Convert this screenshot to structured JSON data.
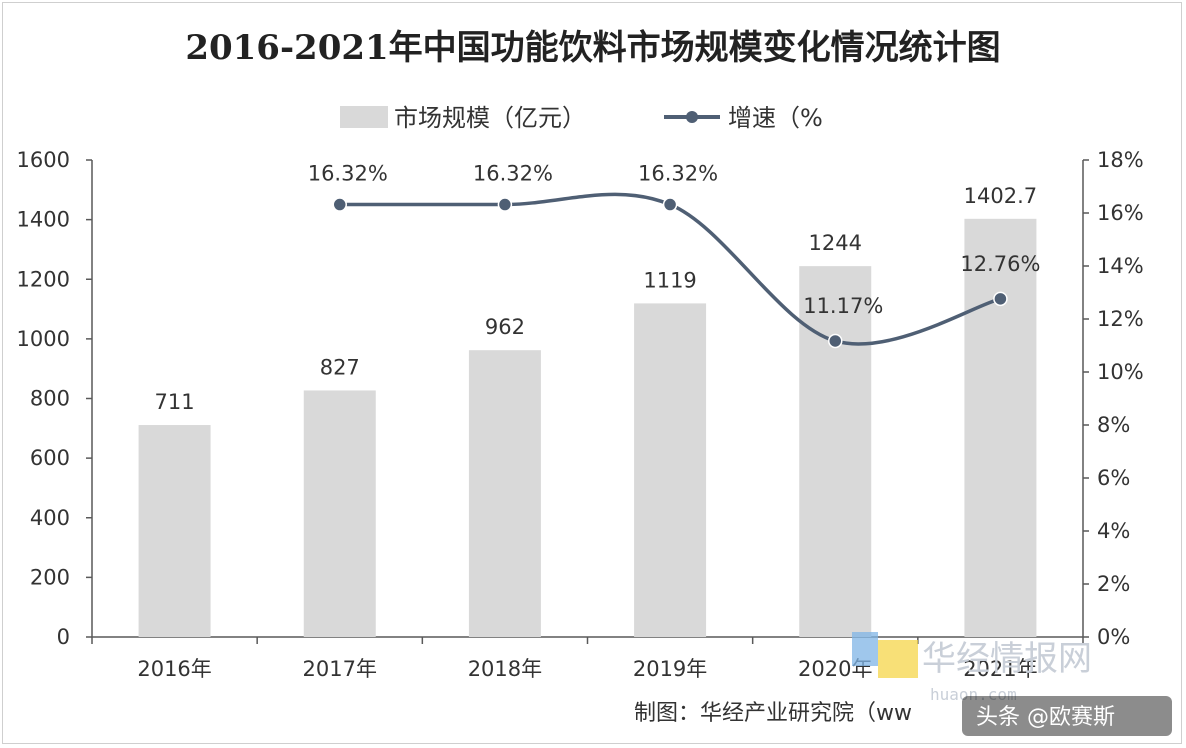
{
  "title": "2016-2021年中国功能饮料市场规模变化情况统计图",
  "legend": {
    "bar_label": "市场规模（亿元）",
    "line_label": "增速（%"
  },
  "source": "制图：华经产业研究院（ww",
  "watermark": {
    "text": "华经情报网",
    "url": "huaon.com"
  },
  "credit": "头条 @欧赛斯",
  "colors": {
    "bar": "#d9d9d9",
    "line": "#4f5f74",
    "axis": "#595959",
    "text": "#333333"
  },
  "chart_data": {
    "type": "bar",
    "title": "2016-2021年中国功能饮料市场规模变化情况统计图",
    "categories": [
      "2016年",
      "2017年",
      "2018年",
      "2019年",
      "2020年",
      "2021年"
    ],
    "series": [
      {
        "name": "市场规模（亿元）",
        "type": "bar",
        "axis": "left",
        "values": [
          711,
          827,
          962,
          1119,
          1244,
          1402.7
        ],
        "labels": [
          "711",
          "827",
          "962",
          "1119",
          "1244",
          "1402.7"
        ]
      },
      {
        "name": "增速（%",
        "type": "line",
        "axis": "right",
        "smooth": true,
        "values": [
          null,
          16.32,
          16.32,
          16.32,
          11.17,
          12.76
        ],
        "labels": [
          "",
          "16.32%",
          "16.32%",
          "16.32%",
          "11.17%",
          "12.76%"
        ]
      }
    ],
    "y_left": {
      "range": [
        0,
        1600
      ],
      "ticks": [
        "0",
        "200",
        "400",
        "600",
        "800",
        "1000",
        "1200",
        "1400",
        "1600"
      ]
    },
    "y_right": {
      "range": [
        0,
        18
      ],
      "ticks": [
        "0%",
        "2%",
        "4%",
        "6%",
        "8%",
        "10%",
        "12%",
        "14%",
        "16%",
        "18%"
      ]
    },
    "grid": false,
    "legend_position": "top-center"
  }
}
